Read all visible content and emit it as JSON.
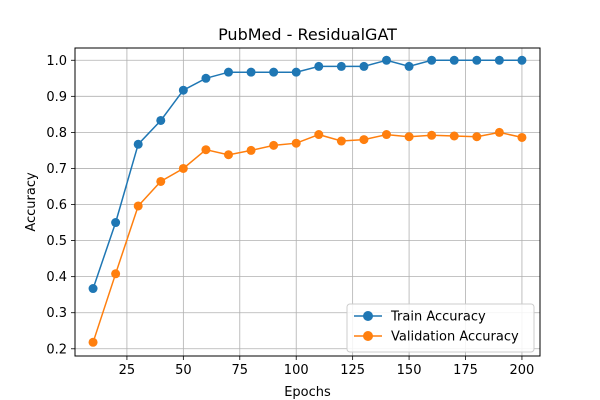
{
  "chart_data": {
    "type": "line",
    "title": "PubMed - ResidualGAT",
    "xlabel": "Epochs",
    "ylabel": "Accuracy",
    "xlim": [
      2,
      208
    ],
    "ylim": [
      0.18,
      1.034
    ],
    "xticks": [
      25,
      50,
      75,
      100,
      125,
      150,
      175,
      200
    ],
    "yticks": [
      0.2,
      0.3,
      0.4,
      0.5,
      0.6,
      0.7,
      0.8,
      0.9,
      1.0
    ],
    "xtick_labels": [
      "25",
      "50",
      "75",
      "100",
      "125",
      "150",
      "175",
      "200"
    ],
    "ytick_labels": [
      "0.2",
      "0.3",
      "0.4",
      "0.5",
      "0.6",
      "0.7",
      "0.8",
      "0.9",
      "1.0"
    ],
    "grid": true,
    "legend_position": "bottom-right",
    "x": [
      10,
      20,
      30,
      40,
      50,
      60,
      70,
      80,
      90,
      100,
      110,
      120,
      130,
      140,
      150,
      160,
      170,
      180,
      190,
      200
    ],
    "series": [
      {
        "name": "Train Accuracy",
        "color": "#1f77b4",
        "marker": "circle",
        "values": [
          0.367,
          0.55,
          0.767,
          0.833,
          0.917,
          0.95,
          0.967,
          0.967,
          0.967,
          0.967,
          0.983,
          0.983,
          0.983,
          1.0,
          0.983,
          1.0,
          1.0,
          1.0,
          1.0,
          1.0
        ]
      },
      {
        "name": "Validation Accuracy",
        "color": "#ff7f0e",
        "marker": "circle",
        "values": [
          0.218,
          0.408,
          0.596,
          0.664,
          0.7,
          0.752,
          0.738,
          0.75,
          0.764,
          0.77,
          0.794,
          0.776,
          0.78,
          0.794,
          0.788,
          0.792,
          0.79,
          0.788,
          0.8,
          0.786
        ]
      }
    ]
  }
}
